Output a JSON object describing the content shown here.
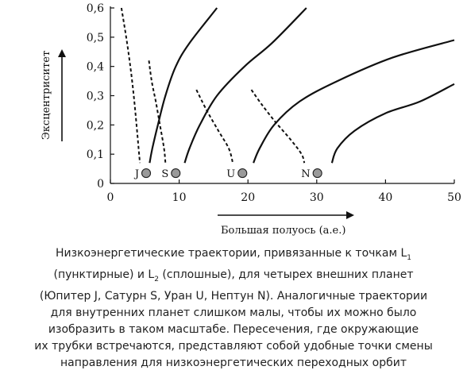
{
  "chart_data": {
    "type": "line",
    "xlabel": "Большая полуось (а.е.)",
    "ylabel": "Эксцентриситет",
    "xlim": [
      0,
      50
    ],
    "ylim": [
      0,
      0.6
    ],
    "xticks": [
      0,
      10,
      20,
      30,
      40,
      50
    ],
    "yticks": [
      0,
      0.1,
      0.2,
      0.3,
      0.4,
      0.5,
      0.6
    ],
    "ytick_labels": [
      "0",
      "0,1",
      "0,2",
      "0,3",
      "0,4",
      "0,5",
      "0,6"
    ],
    "grid": false,
    "planets": [
      {
        "label": "J",
        "a": 5.2,
        "e": 0.035
      },
      {
        "label": "S",
        "a": 9.5,
        "e": 0.035
      },
      {
        "label": "U",
        "a": 19.2,
        "e": 0.035
      },
      {
        "label": "N",
        "a": 30.1,
        "e": 0.035
      }
    ],
    "series": [
      {
        "planet": "J",
        "style": "dashed",
        "points": [
          [
            1.6,
            0.6
          ],
          [
            2.3,
            0.5
          ],
          [
            2.9,
            0.4
          ],
          [
            3.4,
            0.3
          ],
          [
            3.8,
            0.2
          ],
          [
            4.1,
            0.12
          ],
          [
            4.3,
            0.07
          ]
        ]
      },
      {
        "planet": "J",
        "style": "solid",
        "points": [
          [
            5.7,
            0.07
          ],
          [
            6.1,
            0.12
          ],
          [
            6.9,
            0.2
          ],
          [
            8.0,
            0.3
          ],
          [
            9.5,
            0.4
          ],
          [
            11.5,
            0.48
          ],
          [
            15.5,
            0.6
          ]
        ]
      },
      {
        "planet": "S",
        "style": "dashed",
        "points": [
          [
            5.6,
            0.42
          ],
          [
            6.0,
            0.35
          ],
          [
            6.6,
            0.28
          ],
          [
            7.2,
            0.2
          ],
          [
            7.8,
            0.12
          ],
          [
            8.0,
            0.07
          ]
        ]
      },
      {
        "planet": "S",
        "style": "solid",
        "points": [
          [
            10.8,
            0.07
          ],
          [
            11.5,
            0.12
          ],
          [
            13.0,
            0.2
          ],
          [
            15.5,
            0.3
          ],
          [
            19.5,
            0.4
          ],
          [
            23.5,
            0.48
          ],
          [
            28.5,
            0.6
          ]
        ]
      },
      {
        "planet": "U",
        "style": "dashed",
        "points": [
          [
            12.5,
            0.32
          ],
          [
            14.0,
            0.25
          ],
          [
            15.7,
            0.18
          ],
          [
            17.2,
            0.12
          ],
          [
            17.8,
            0.07
          ]
        ]
      },
      {
        "planet": "U",
        "style": "solid",
        "points": [
          [
            20.8,
            0.07
          ],
          [
            21.7,
            0.12
          ],
          [
            23.8,
            0.2
          ],
          [
            27.5,
            0.28
          ],
          [
            33.0,
            0.35
          ],
          [
            41.0,
            0.43
          ],
          [
            50.0,
            0.49
          ]
        ]
      },
      {
        "planet": "N",
        "style": "dashed",
        "points": [
          [
            20.5,
            0.32
          ],
          [
            22.0,
            0.27
          ],
          [
            24.0,
            0.21
          ],
          [
            26.2,
            0.15
          ],
          [
            27.8,
            0.1
          ],
          [
            28.2,
            0.07
          ]
        ]
      },
      {
        "planet": "N",
        "style": "solid",
        "points": [
          [
            32.2,
            0.07
          ],
          [
            33.0,
            0.12
          ],
          [
            35.5,
            0.18
          ],
          [
            40.0,
            0.24
          ],
          [
            45.0,
            0.28
          ],
          [
            50.0,
            0.34
          ]
        ]
      }
    ]
  },
  "caption": {
    "l1": "Низкоэнергетические траектории, привязанные к точкам L",
    "l1_sub": "1",
    "l2a": "(пунктирные) и L",
    "l2_sub": "2",
    "l2b": " (сплошные), для четырех внешних планет",
    "l3": "(Юпитер J, Сатурн S, Уран U, Нептун N). Аналогичные траектории",
    "l4": "для внутренних планет слишком малы, чтобы их можно было",
    "l5": "изобразить в таком масштабе. Пересечения, где окружающие",
    "l6": "их трубки встречаются, представляют собой удобные точки смены",
    "l7": "направления для низкоэнергетических переходных орбит"
  }
}
